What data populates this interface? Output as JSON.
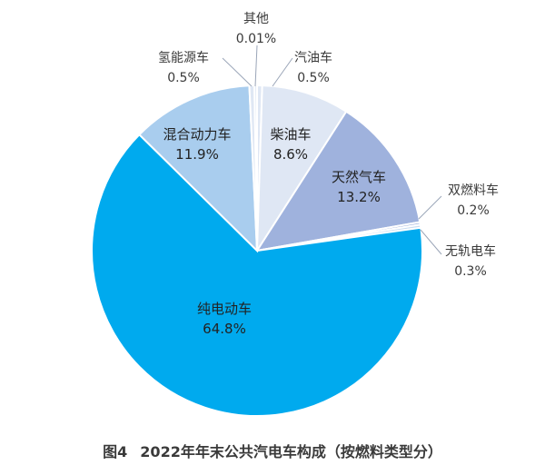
{
  "figure_caption": {
    "number": "图4",
    "title": "2022年年末公共汽电车构成（按燃料类型分）"
  },
  "chart_data": {
    "type": "pie",
    "title": "",
    "unit": "%",
    "slices": [
      {
        "label": "汽油车",
        "value": 0.5,
        "display": "0.5%",
        "color": "#dfe7f4"
      },
      {
        "label": "柴油车",
        "value": 8.6,
        "display": "8.6%",
        "color": "#dfe7f4"
      },
      {
        "label": "天然气车",
        "value": 13.2,
        "display": "13.2%",
        "color": "#9fb2dd"
      },
      {
        "label": "双燃料车",
        "value": 0.2,
        "display": "0.2%",
        "color": "#9fb2dd"
      },
      {
        "label": "无轨电车",
        "value": 0.3,
        "display": "0.3%",
        "color": "#c9ddf2"
      },
      {
        "label": "纯电动车",
        "value": 64.8,
        "display": "64.8%",
        "color": "#00aaee"
      },
      {
        "label": "混合动力车",
        "value": 11.9,
        "display": "11.9%",
        "color": "#a9cdee"
      },
      {
        "label": "氢能源车",
        "value": 0.5,
        "display": "0.5%",
        "color": "#dfe7f4"
      },
      {
        "label": "其他",
        "value": 0.01,
        "display": "0.01%",
        "color": "#dfe7f4"
      }
    ]
  }
}
